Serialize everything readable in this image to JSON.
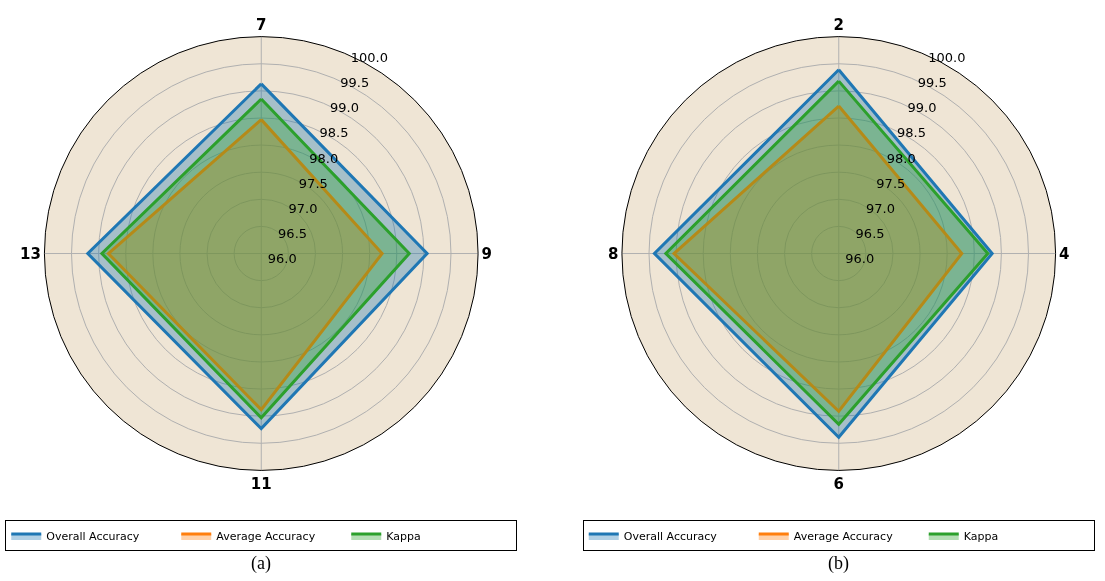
{
  "chart_data": [
    {
      "type": "radar",
      "categories": [
        "7",
        "9",
        "11",
        "13"
      ],
      "series": [
        {
          "name": "Overall Accuracy",
          "color": "#1f77b4",
          "values": [
            99.13,
            99.06,
            99.23,
            99.2
          ]
        },
        {
          "name": "Average Accuracy",
          "color": "#ff7f0e",
          "values": [
            98.47,
            98.23,
            98.88,
            98.82
          ]
        },
        {
          "name": "Kappa",
          "color": "#2ca02c",
          "values": [
            98.85,
            98.73,
            99.03,
            98.94
          ]
        }
      ],
      "ylim": [
        96,
        100
      ],
      "yticks": [
        {
          "value": 96,
          "label": "96.0"
        },
        {
          "value": 96.5,
          "label": "96.5"
        },
        {
          "value": 97,
          "label": "97.0"
        },
        {
          "value": 97.5,
          "label": "97.5"
        },
        {
          "value": 98,
          "label": "98.0"
        },
        {
          "value": 98.5,
          "label": "98.5"
        },
        {
          "value": 99,
          "label": "99.0"
        },
        {
          "value": 99.5,
          "label": "99.5"
        },
        {
          "value": 100,
          "label": "100.0"
        }
      ],
      "grid": true,
      "legend": "bottom",
      "annotations": [
        "(a)"
      ]
    },
    {
      "type": "radar",
      "categories": [
        "2",
        "4",
        "6",
        "8"
      ],
      "series": [
        {
          "name": "Overall Accuracy",
          "color": "#1f77b4",
          "values": [
            99.39,
            98.83,
            99.39,
            99.4
          ]
        },
        {
          "name": "Average Accuracy",
          "color": "#ff7f0e",
          "values": [
            98.72,
            98.27,
            98.91,
            99.04
          ]
        },
        {
          "name": "Kappa",
          "color": "#2ca02c",
          "values": [
            99.18,
            98.75,
            99.15,
            99.19
          ]
        }
      ],
      "ylim": [
        96,
        100
      ],
      "yticks": [
        {
          "value": 96,
          "label": "96.0"
        },
        {
          "value": 96.5,
          "label": "96.5"
        },
        {
          "value": 97,
          "label": "97.0"
        },
        {
          "value": 97.5,
          "label": "97.5"
        },
        {
          "value": 98,
          "label": "98.0"
        },
        {
          "value": 98.5,
          "label": "98.5"
        },
        {
          "value": 99,
          "label": "99.0"
        },
        {
          "value": 99.5,
          "label": "99.5"
        },
        {
          "value": 100,
          "label": "100.0"
        }
      ],
      "grid": true,
      "legend": "bottom",
      "annotations": [
        "(b)"
      ]
    }
  ]
}
